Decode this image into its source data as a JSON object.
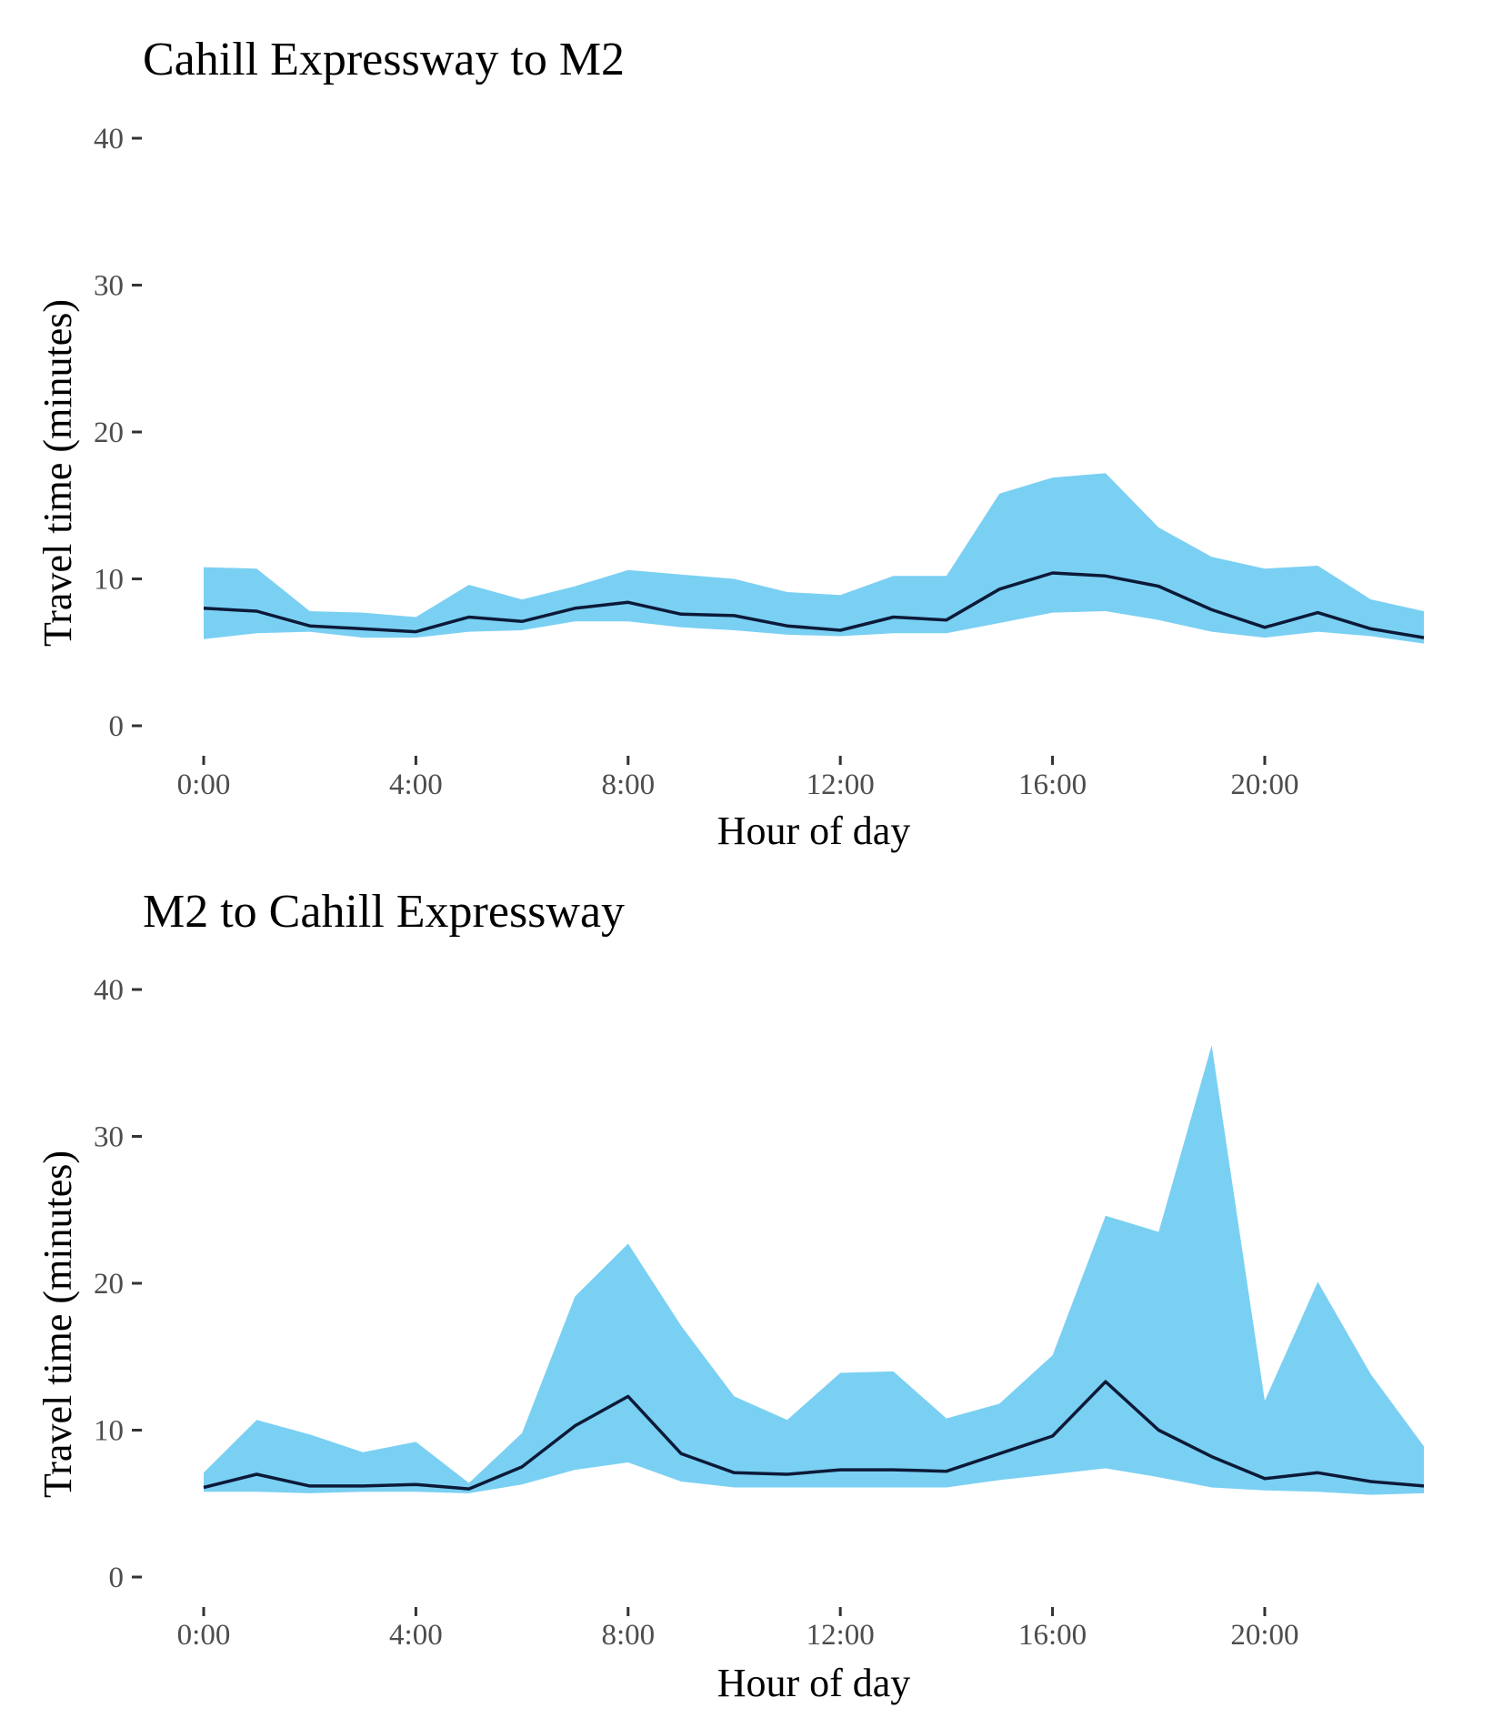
{
  "colors": {
    "band": "#7ad0f3",
    "line": "#0c1a38",
    "tick": "#333333"
  },
  "chart_data": [
    {
      "type": "area",
      "title": "Cahill Expressway to M2",
      "xlabel": "Hour of day",
      "ylabel": "Travel time (minutes)",
      "ylim": [
        0,
        40
      ],
      "yticks": [
        0,
        10,
        20,
        30,
        40
      ],
      "xlim": [
        0,
        23
      ],
      "xticks": [
        {
          "value": 0,
          "label": "0:00"
        },
        {
          "value": 4,
          "label": "4:00"
        },
        {
          "value": 8,
          "label": "8:00"
        },
        {
          "value": 12,
          "label": "12:00"
        },
        {
          "value": 16,
          "label": "16:00"
        },
        {
          "value": 20,
          "label": "20:00"
        }
      ],
      "grid": false,
      "x": [
        0,
        1,
        2,
        3,
        4,
        5,
        6,
        7,
        8,
        9,
        10,
        11,
        12,
        13,
        14,
        15,
        16,
        17,
        18,
        19,
        20,
        21,
        22,
        23
      ],
      "band_low": [
        5.9,
        6.3,
        6.4,
        6.0,
        6.0,
        6.4,
        6.5,
        7.1,
        7.1,
        6.7,
        6.5,
        6.2,
        6.1,
        6.3,
        6.3,
        7.0,
        7.7,
        7.8,
        7.2,
        6.4,
        6.0,
        6.4,
        6.1,
        5.6
      ],
      "band_high": [
        10.8,
        10.7,
        7.8,
        7.7,
        7.4,
        9.6,
        8.6,
        9.5,
        10.6,
        10.3,
        10.0,
        9.1,
        8.9,
        10.2,
        10.2,
        15.8,
        16.9,
        17.2,
        13.5,
        11.5,
        10.7,
        10.9,
        8.6,
        7.8
      ],
      "line": [
        8.0,
        7.8,
        6.8,
        6.6,
        6.4,
        7.4,
        7.1,
        8.0,
        8.4,
        7.6,
        7.5,
        6.8,
        6.5,
        7.4,
        7.2,
        9.3,
        10.4,
        10.2,
        9.5,
        7.9,
        6.7,
        7.7,
        6.6,
        6.0
      ]
    },
    {
      "type": "area",
      "title": "M2 to Cahill Expressway",
      "xlabel": "Hour of day",
      "ylabel": "Travel time (minutes)",
      "ylim": [
        0,
        40
      ],
      "yticks": [
        0,
        10,
        20,
        30,
        40
      ],
      "xlim": [
        0,
        23
      ],
      "xticks": [
        {
          "value": 0,
          "label": "0:00"
        },
        {
          "value": 4,
          "label": "4:00"
        },
        {
          "value": 8,
          "label": "8:00"
        },
        {
          "value": 12,
          "label": "12:00"
        },
        {
          "value": 16,
          "label": "16:00"
        },
        {
          "value": 20,
          "label": "20:00"
        }
      ],
      "grid": false,
      "x": [
        0,
        1,
        2,
        3,
        4,
        5,
        6,
        7,
        8,
        9,
        10,
        11,
        12,
        13,
        14,
        15,
        16,
        17,
        18,
        19,
        20,
        21,
        22,
        23
      ],
      "band_low": [
        5.8,
        5.8,
        5.7,
        5.8,
        5.8,
        5.7,
        6.3,
        7.3,
        7.8,
        6.5,
        6.1,
        6.1,
        6.1,
        6.1,
        6.1,
        6.6,
        7.0,
        7.4,
        6.8,
        6.1,
        5.9,
        5.8,
        5.6,
        5.7
      ],
      "band_high": [
        7.1,
        10.7,
        9.7,
        8.5,
        9.2,
        6.4,
        9.8,
        19.1,
        22.7,
        17.1,
        12.3,
        10.7,
        13.9,
        14.0,
        10.8,
        11.8,
        15.1,
        24.6,
        23.5,
        36.2,
        12.0,
        20.1,
        13.8,
        8.9
      ],
      "line": [
        6.1,
        7.0,
        6.2,
        6.2,
        6.3,
        6.0,
        7.5,
        10.3,
        12.3,
        8.4,
        7.1,
        7.0,
        7.3,
        7.3,
        7.2,
        8.4,
        9.6,
        13.3,
        10.0,
        8.2,
        6.7,
        7.1,
        6.5,
        6.2
      ]
    }
  ]
}
